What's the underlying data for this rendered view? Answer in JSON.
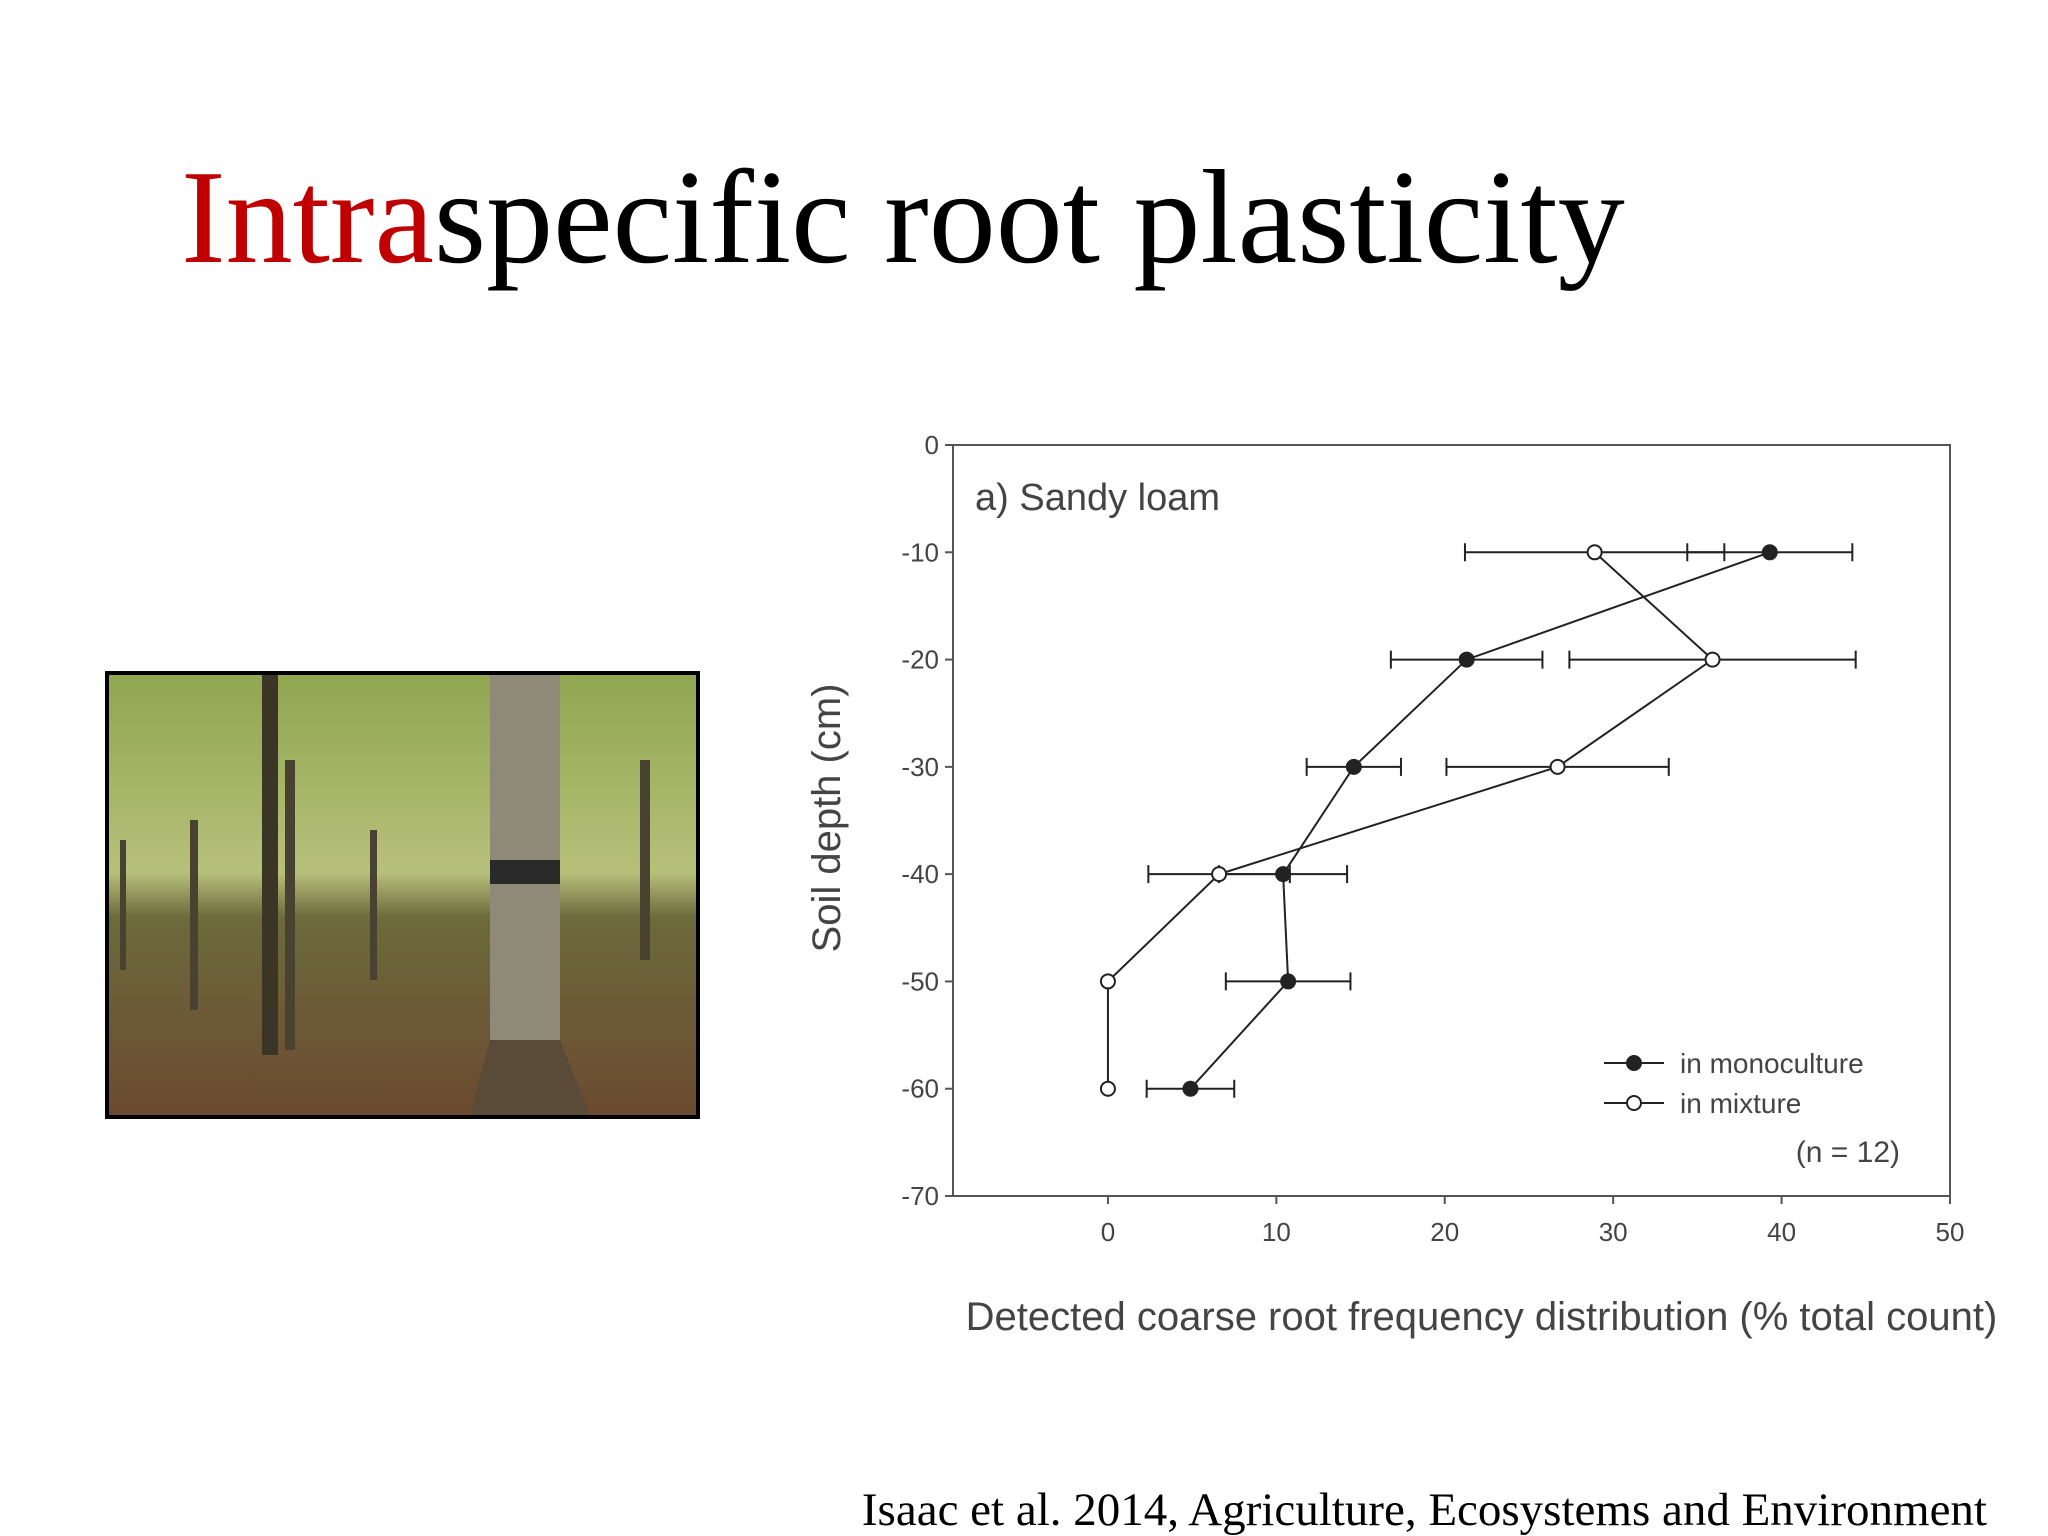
{
  "title": {
    "highlight": "Intra",
    "rest": "specific root plasticity"
  },
  "citation": "Isaac et al. 2014, Agriculture, Ecosystems and Environment",
  "chart_data": {
    "type": "line",
    "xlabel": "Detected coarse root frequency distribution (% total count)",
    "ylabel": "Soil depth (cm)",
    "annotations": [
      "a) Sandy loam",
      "(n = 12)"
    ],
    "xlim": [
      -9.2,
      50
    ],
    "xticks": [
      0,
      10,
      20,
      30,
      40,
      50
    ],
    "ylim": [
      -70,
      0
    ],
    "yticks": [
      0,
      -10,
      -20,
      -30,
      -40,
      -50,
      -60,
      -70
    ],
    "legend": "lower right",
    "series": [
      {
        "name": "in monoculture",
        "marker": "filled",
        "color": "#222222",
        "x": [
          39.3,
          21.3,
          14.6,
          10.4,
          10.7,
          4.9
        ],
        "values": [
          -10,
          -20,
          -30,
          -40,
          -50,
          -60
        ],
        "xerr": [
          4.9,
          4.5,
          2.8,
          3.8,
          3.7,
          2.6
        ]
      },
      {
        "name": "in mixture",
        "marker": "open",
        "color": "#222222",
        "x": [
          28.9,
          35.9,
          26.7,
          6.6,
          0,
          0
        ],
        "values": [
          -10,
          -20,
          -30,
          -40,
          -50,
          -60
        ],
        "xerr": [
          7.7,
          8.5,
          6.6,
          4.2,
          null,
          null
        ]
      }
    ]
  }
}
